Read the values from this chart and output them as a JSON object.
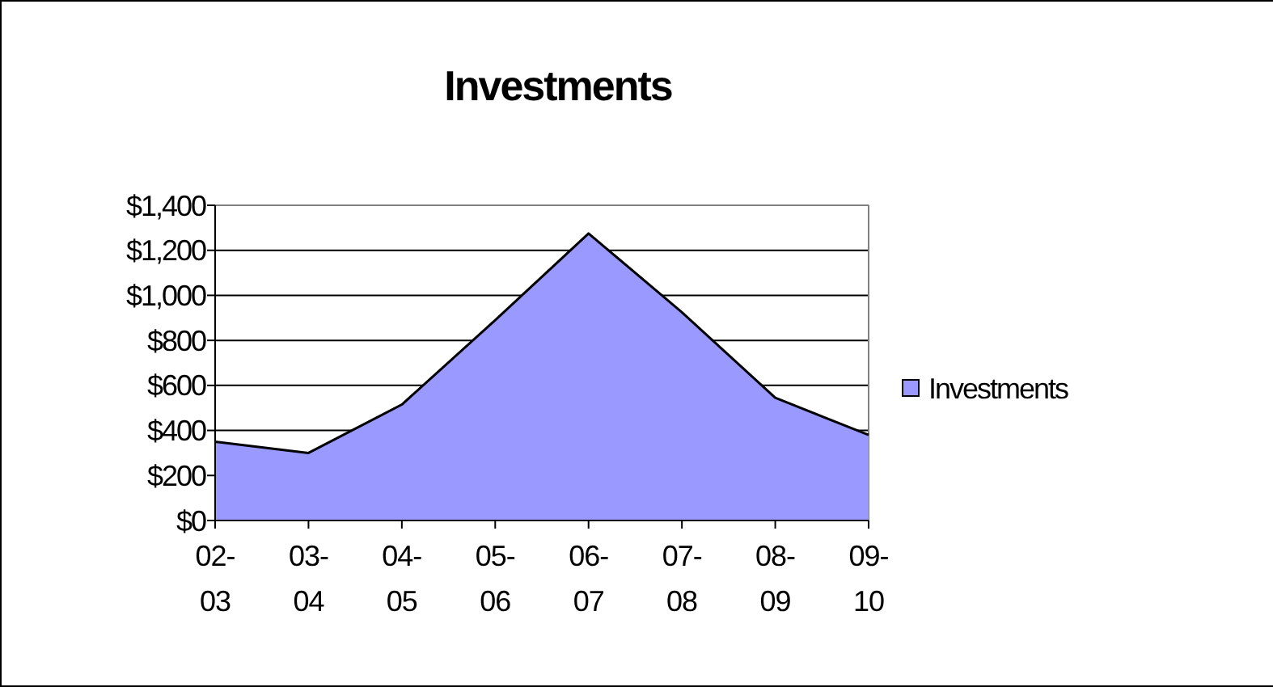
{
  "chart_data": {
    "type": "area",
    "title": "Investments",
    "categories": [
      "02-03",
      "03-04",
      "04-05",
      "05-06",
      "06-07",
      "07-08",
      "08-09",
      "09-10"
    ],
    "series": [
      {
        "name": "Investments",
        "color": "#9999ff",
        "values": [
          350,
          300,
          515,
          890,
          1275,
          925,
          545,
          380
        ]
      }
    ],
    "ylim": [
      0,
      1400
    ],
    "yticks": [
      {
        "value": 0,
        "label": "$0"
      },
      {
        "value": 200,
        "label": "$200"
      },
      {
        "value": 400,
        "label": "$400"
      },
      {
        "value": 600,
        "label": "$600"
      },
      {
        "value": 800,
        "label": "$800"
      },
      {
        "value": 1000,
        "label": "$1,000"
      },
      {
        "value": 1200,
        "label": "$1,200"
      },
      {
        "value": 1400,
        "label": "$1,400"
      }
    ],
    "grid": "y",
    "legend": "right"
  }
}
